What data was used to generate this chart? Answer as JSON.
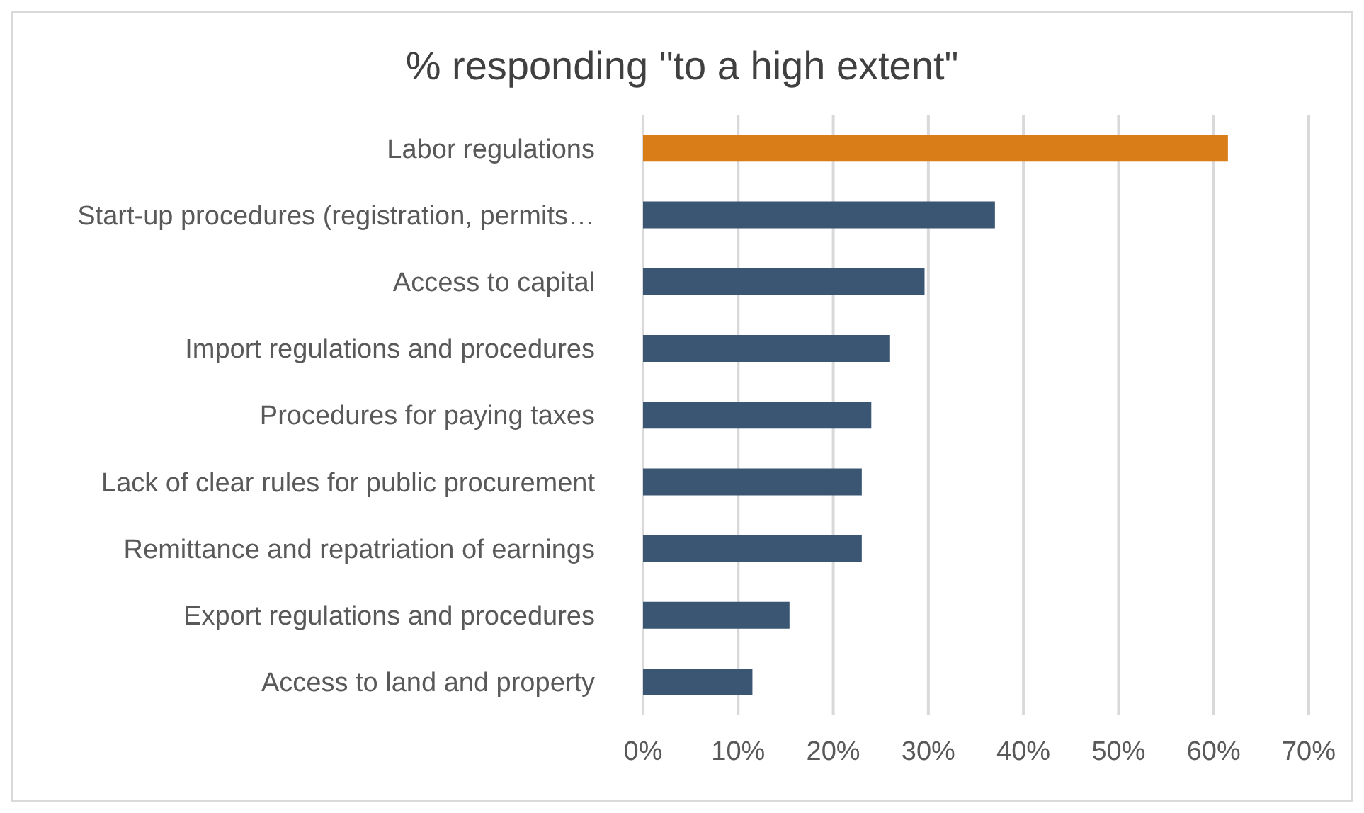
{
  "chart_data": {
    "type": "bar",
    "orientation": "horizontal",
    "title": "% responding \"to a high extent\"",
    "categories": [
      "Labor regulations",
      "Start-up procedures (registration, permits…",
      "Access to capital",
      "Import regulations and procedures",
      "Procedures for paying taxes",
      "Lack of clear rules for public procurement",
      "Remittance and repatriation of earnings",
      "Export regulations and procedures",
      "Access to land and property"
    ],
    "values": [
      61.5,
      37,
      29.6,
      25.9,
      24,
      23,
      23,
      15.4,
      11.5
    ],
    "colors": [
      "#d97d18",
      "#3a5673",
      "#3a5673",
      "#3a5673",
      "#3a5673",
      "#3a5673",
      "#3a5673",
      "#3a5673",
      "#3a5673"
    ],
    "xlim": [
      0,
      70
    ],
    "xticks": [
      {
        "value": 0,
        "label": "0%"
      },
      {
        "value": 10,
        "label": "10%"
      },
      {
        "value": 20,
        "label": "20%"
      },
      {
        "value": 30,
        "label": "30%"
      },
      {
        "value": 40,
        "label": "40%"
      },
      {
        "value": 50,
        "label": "50%"
      },
      {
        "value": 60,
        "label": "60%"
      },
      {
        "value": 70,
        "label": "70%"
      }
    ],
    "grid": "x"
  }
}
